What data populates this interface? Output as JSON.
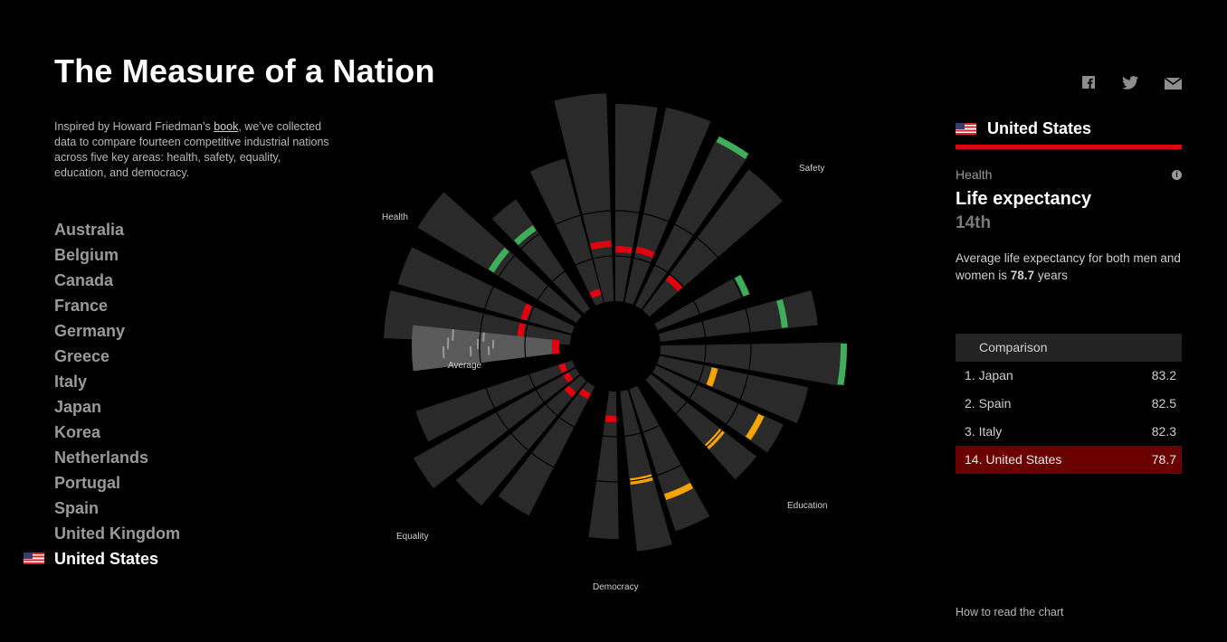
{
  "page": {
    "title": "The Measure of a Nation",
    "intro_before": "Inspired by Howard Friedman’s ",
    "intro_link": "book",
    "intro_after": ", we’ve collected data to compare fourteen competitive industrial nations across five key areas: health, safety, equality, education, and democracy."
  },
  "countries": [
    "Australia",
    "Belgium",
    "Canada",
    "France",
    "Germany",
    "Greece",
    "Italy",
    "Japan",
    "Korea",
    "Netherlands",
    "Portugal",
    "Spain",
    "United Kingdom",
    "United States"
  ],
  "selected_country": "United States",
  "share": {
    "facebook": "facebook-icon",
    "twitter": "twitter-icon",
    "email": "email-icon"
  },
  "chart_labels": {
    "health": "Health",
    "safety": "Safety",
    "education": "Education",
    "democracy": "Democracy",
    "equality": "Equality",
    "average": "Average"
  },
  "panel": {
    "country": "United States",
    "category": "Health",
    "metric": "Life expectancy",
    "rank": "14th",
    "desc_before": "Average life expectancy for both men and women is ",
    "desc_value": "78.7",
    "desc_after": " years"
  },
  "comparison": {
    "title": "Comparison",
    "rows": [
      {
        "rank": "1.",
        "country": "Japan",
        "value": "83.2"
      },
      {
        "rank": "2.",
        "country": "Spain",
        "value": "82.5"
      },
      {
        "rank": "3.",
        "country": "Italy",
        "value": "82.3"
      },
      {
        "rank": "14.",
        "country": "United States",
        "value": "78.7"
      }
    ]
  },
  "footer": {
    "how_to": "How to read the chart"
  },
  "colors": {
    "background": "#000000",
    "accent": "#e3000f",
    "good": "#3fae5a",
    "medium": "#f5a400",
    "bad": "#e3000f",
    "wedge": "#2a2a2a",
    "highlight_row": "#6b0000"
  }
}
